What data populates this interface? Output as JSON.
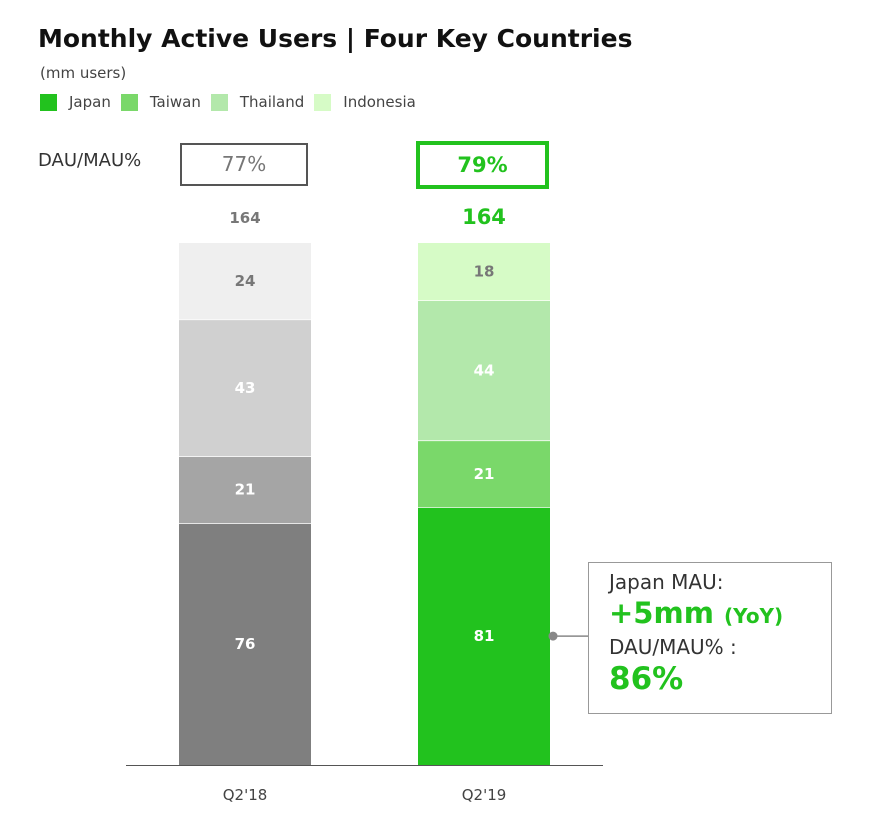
{
  "title": "Monthly Active Users | Four Key Countries",
  "subtitle": "(mm users)",
  "legend": [
    {
      "label": "Japan",
      "color": "#22c21e"
    },
    {
      "label": "Taiwan",
      "color": "#7ad86a"
    },
    {
      "label": "Thailand",
      "color": "#b3e8ab"
    },
    {
      "label": "Indonesia",
      "color": "#d6fbc6"
    }
  ],
  "dau_mau": {
    "label": "DAU/MAU%",
    "q218": "77%",
    "q219": "79%"
  },
  "callout": {
    "line1": "Japan MAU:",
    "line2": "+5mm",
    "line2_suffix": "(YoY)",
    "line3": "DAU/MAU% :",
    "line4": "86%"
  },
  "chart_data": {
    "type": "bar",
    "stacked": true,
    "categories": [
      "Q2'18",
      "Q2'19"
    ],
    "series": [
      {
        "name": "Japan",
        "values": [
          76,
          81
        ]
      },
      {
        "name": "Taiwan",
        "values": [
          21,
          21
        ]
      },
      {
        "name": "Thailand",
        "values": [
          43,
          44
        ]
      },
      {
        "name": "Indonesia",
        "values": [
          24,
          18
        ]
      }
    ],
    "totals": [
      164,
      164
    ],
    "colors": {
      "Q2'18": [
        "#7f7f7f",
        "#a5a5a5",
        "#d0d0d0",
        "#efefef"
      ],
      "Q2'19": [
        "#22c21e",
        "#7ad86a",
        "#b3e8ab",
        "#d6fbc6"
      ]
    },
    "label_colors": {
      "Q2'18": [
        "#ffffff",
        "#ffffff",
        "#ffffff",
        "#777777"
      ],
      "Q2'19": [
        "#ffffff",
        "#ffffff",
        "#ffffff",
        "#777777"
      ]
    },
    "total_colors": [
      "#777777",
      "#22c21e"
    ],
    "ylim": [
      0,
      164
    ],
    "grid": false
  }
}
